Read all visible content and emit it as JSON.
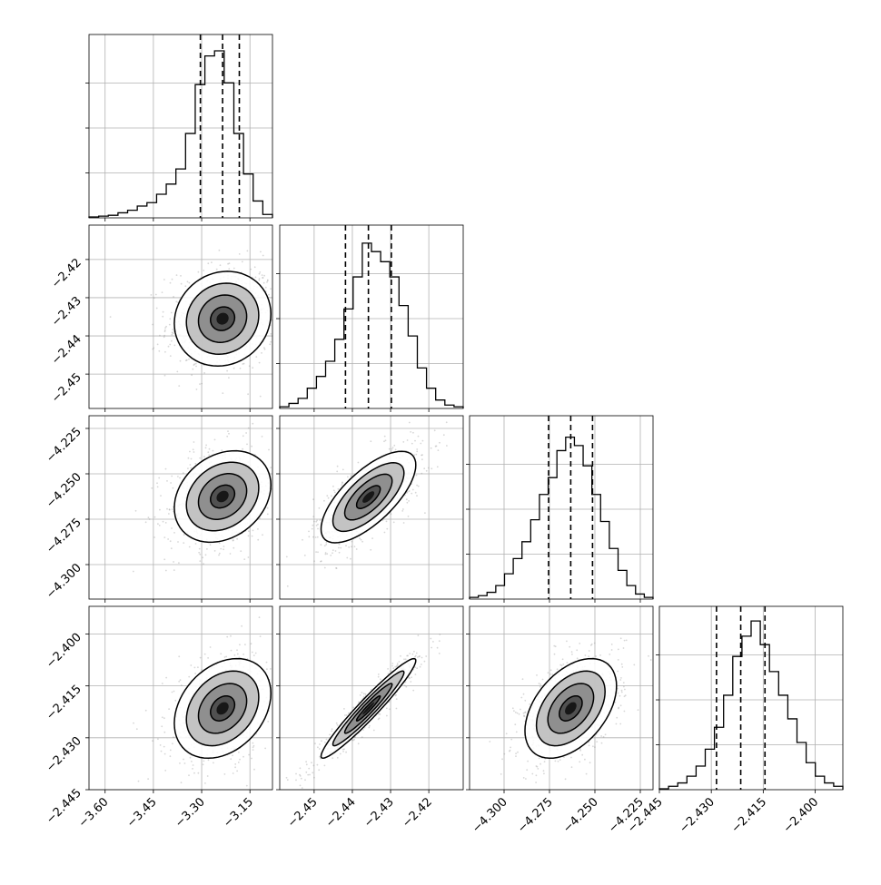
{
  "chart_data": {
    "type": "corner",
    "title": "",
    "quantiles": [
      0.16,
      0.5,
      0.84
    ],
    "grid": true,
    "dims": [
      {
        "range": [
          -3.65,
          -3.08
        ],
        "ticks": [
          -3.6,
          -3.45,
          -3.3,
          -3.15
        ],
        "tick_labels": [
          "−3.60",
          "−3.45",
          "−3.30",
          "−3.15"
        ],
        "median": -3.235,
        "q16": -3.304,
        "q84": -3.183
      },
      {
        "range": [
          -2.459,
          -2.411
        ],
        "ticks": [
          -2.45,
          -2.44,
          -2.43,
          -2.42
        ],
        "tick_labels": [
          "−2.45",
          "−2.44",
          "−2.43",
          "−2.42"
        ],
        "median": -2.4358,
        "q16": -2.4418,
        "q84": -2.4298
      },
      {
        "range": [
          -4.319,
          -4.218
        ],
        "ticks": [
          -4.3,
          -4.275,
          -4.25,
          -4.225
        ],
        "tick_labels": [
          "−4.300",
          "−4.275",
          "−4.250",
          "−4.225"
        ],
        "median": -4.2633,
        "q16": -4.2755,
        "q84": -4.2513
      },
      {
        "range": [
          -2.445,
          -2.392
        ],
        "ticks": [
          -2.445,
          -2.43,
          -2.415,
          -2.4
        ],
        "tick_labels": [
          "−2.445",
          "−2.430",
          "−2.415",
          "−2.400"
        ],
        "median": -2.4215,
        "q16": -2.4285,
        "q84": -2.4145
      }
    ],
    "histograms": [
      {
        "values": [
          0.005,
          0.01,
          0.015,
          0.03,
          0.045,
          0.07,
          0.09,
          0.14,
          0.2,
          0.29,
          0.5,
          0.79,
          0.96,
          0.99,
          0.8,
          0.5,
          0.26,
          0.1,
          0.02
        ]
      },
      {
        "values": [
          0.01,
          0.03,
          0.06,
          0.12,
          0.19,
          0.28,
          0.41,
          0.59,
          0.78,
          0.98,
          0.93,
          0.87,
          0.78,
          0.61,
          0.43,
          0.24,
          0.12,
          0.05,
          0.02,
          0.01
        ]
      },
      {
        "values": [
          0.01,
          0.02,
          0.04,
          0.08,
          0.15,
          0.24,
          0.34,
          0.47,
          0.62,
          0.72,
          0.88,
          0.96,
          0.91,
          0.79,
          0.62,
          0.46,
          0.3,
          0.17,
          0.08,
          0.03,
          0.01
        ]
      },
      {
        "values": [
          0.005,
          0.02,
          0.04,
          0.08,
          0.14,
          0.24,
          0.37,
          0.56,
          0.79,
          0.91,
          1.0,
          0.86,
          0.7,
          0.56,
          0.42,
          0.28,
          0.16,
          0.08,
          0.04,
          0.02
        ]
      }
    ],
    "pairs": [
      {
        "row": 1,
        "col": 0,
        "center": [
          -3.235,
          -2.4355
        ],
        "sigma": [
          0.075,
          0.0062
        ],
        "rho": 0.1
      },
      {
        "row": 2,
        "col": 0,
        "center": [
          -3.235,
          -4.2625
        ],
        "sigma": [
          0.075,
          0.0126
        ],
        "rho": 0.25
      },
      {
        "row": 2,
        "col": 1,
        "center": [
          -2.4358,
          -4.2628
        ],
        "sigma": [
          0.0062,
          0.0126
        ],
        "rho": 0.7
      },
      {
        "row": 3,
        "col": 0,
        "center": [
          -3.235,
          -2.4215
        ],
        "sigma": [
          0.075,
          0.0072
        ],
        "rho": 0.3
      },
      {
        "row": 3,
        "col": 1,
        "center": [
          -2.4358,
          -2.4215
        ],
        "sigma": [
          0.0062,
          0.0072
        ],
        "rho": 0.96
      },
      {
        "row": 3,
        "col": 2,
        "center": [
          -4.2633,
          -2.4215
        ],
        "sigma": [
          0.0126,
          0.0072
        ],
        "rho": 0.45
      }
    ],
    "contour_levels_sigma": [
      0.5,
      1.0,
      1.5,
      2.0
    ]
  }
}
